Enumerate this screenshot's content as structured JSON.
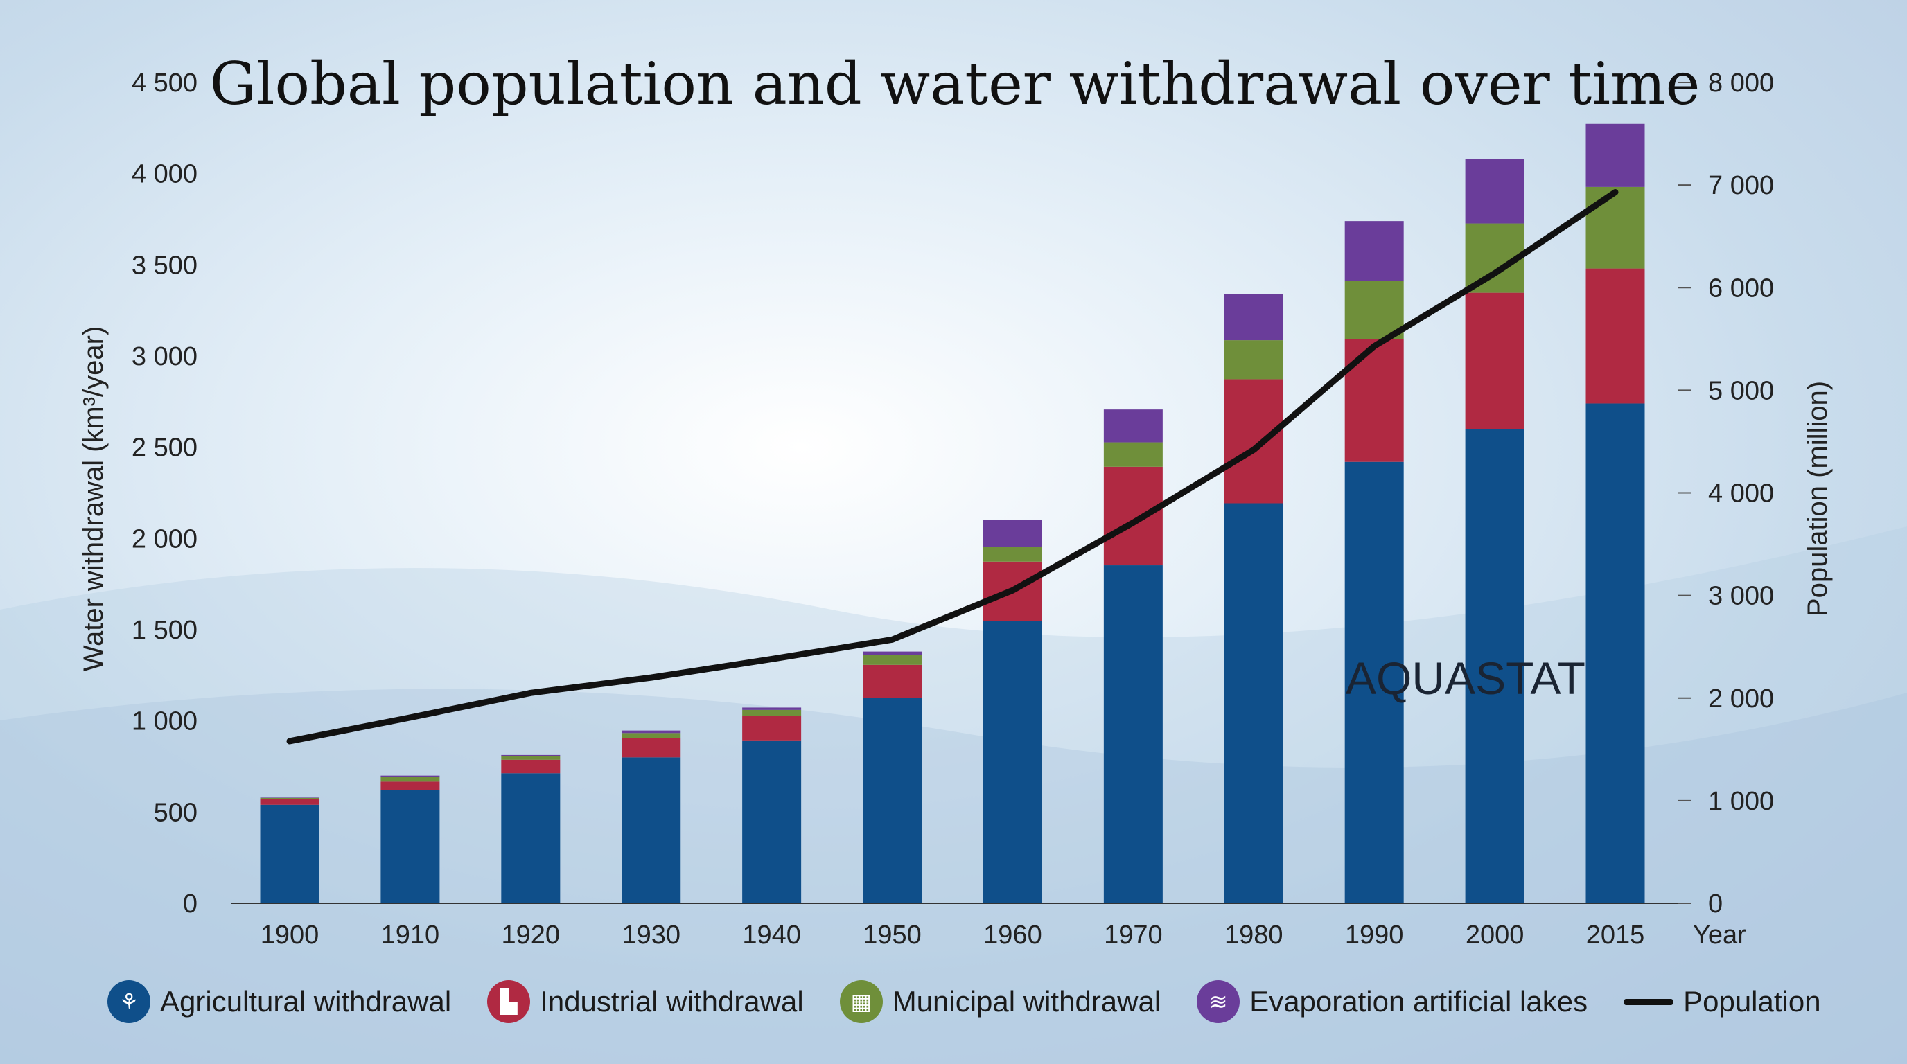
{
  "chart_data": {
    "type": "bar",
    "stacked": true,
    "title": "Global population and water withdrawal over time",
    "ylabel": "Water withdrawal (km³/year)",
    "y2label": "Population (million)",
    "xlabel": "Year",
    "ylim": [
      0,
      4500
    ],
    "y2lim": [
      0,
      8000
    ],
    "yticks": [
      "0",
      "500",
      "1 000",
      "1 500",
      "2 000",
      "2 500",
      "3 000",
      "3 500",
      "4 000",
      "4 500"
    ],
    "y2ticks": [
      "0",
      "1 000",
      "2 000",
      "3 000",
      "4 000",
      "5 000",
      "6 000",
      "7 000",
      "8 000"
    ],
    "categories": [
      "1900",
      "1910",
      "1920",
      "1930",
      "1940",
      "1950",
      "1960",
      "1970",
      "1980",
      "1990",
      "2000",
      "2015"
    ],
    "series": [
      {
        "name": "Agricultural withdrawal",
        "color": "#0f4f8a",
        "icon": "wheat-icon",
        "values": [
          540,
          620,
          713,
          800,
          893,
          1127,
          1547,
          1853,
          2193,
          2420,
          2600,
          2740
        ]
      },
      {
        "name": "Industrial withdrawal",
        "color": "#b02942",
        "icon": "factory-icon",
        "values": [
          30,
          47,
          74,
          107,
          134,
          180,
          326,
          540,
          680,
          673,
          747,
          740
        ]
      },
      {
        "name": "Municipal withdrawal",
        "color": "#6f8f3a",
        "icon": "building-icon",
        "values": [
          8,
          26,
          20,
          26,
          33,
          53,
          80,
          134,
          214,
          320,
          380,
          447
        ]
      },
      {
        "name": "Evaporation artificial lakes",
        "color": "#6a3d9a",
        "icon": "waves-icon",
        "values": [
          2,
          7,
          6,
          14,
          13,
          20,
          147,
          180,
          253,
          327,
          353,
          346
        ]
      }
    ],
    "line": {
      "name": "Population",
      "color": "#111111",
      "axis": "right",
      "values": [
        1580,
        1810,
        2050,
        2200,
        2380,
        2570,
        3050,
        3710,
        4420,
        5430,
        6140,
        6930
      ]
    },
    "annotation": "AQUASTAT",
    "grid": false,
    "legend_position": "bottom"
  }
}
